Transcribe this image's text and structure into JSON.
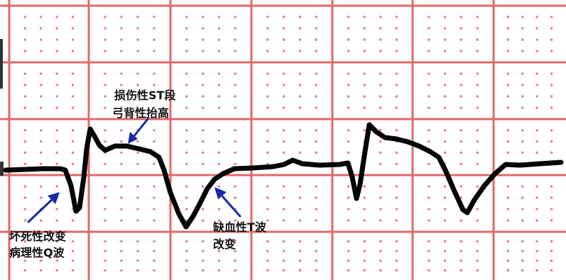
{
  "colors": {
    "paper": "#ffffff",
    "grid_major": "#e0696b",
    "grid_dot": "#d98a8c",
    "trace": "#050505",
    "arrow": "#1a2aa6",
    "text": "#111111",
    "left_bar": "#333333"
  },
  "annotations": {
    "st_elevation": {
      "line1": "损伤性ST段",
      "line2": "弓背性抬高"
    },
    "q_wave": {
      "line1": "坏死性改变",
      "line2": "病理性Q波"
    },
    "t_wave": {
      "line1": "缺血性T波",
      "line2": "改变"
    }
  },
  "icons": {
    "arrow": "arrow-icon"
  }
}
